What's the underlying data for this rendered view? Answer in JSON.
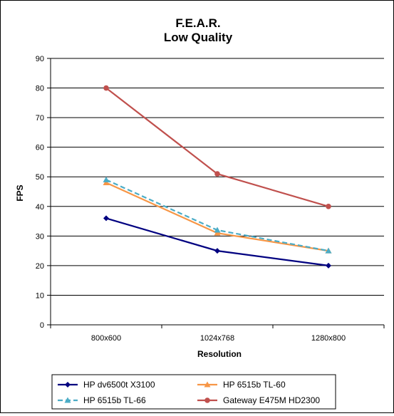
{
  "chart_data": {
    "type": "line",
    "title": "F.E.A.R.",
    "subtitle": "Low Quality",
    "xlabel": "Resolution",
    "ylabel": "FPS",
    "categories": [
      "800x600",
      "1024x768",
      "1280x800"
    ],
    "ylim": [
      0,
      90
    ],
    "yticks": [
      0,
      10,
      20,
      30,
      40,
      50,
      60,
      70,
      80,
      90
    ],
    "grid": true,
    "legend_position": "bottom",
    "series": [
      {
        "name": "HP dv6500t X3100",
        "values": [
          36,
          25,
          20
        ],
        "color": "#000080",
        "marker": "diamond",
        "dashed": false
      },
      {
        "name": "HP 6515b TL-60",
        "values": [
          48,
          31,
          25
        ],
        "color": "#F79646",
        "marker": "triangle",
        "dashed": false
      },
      {
        "name": "HP 6515b TL-66",
        "values": [
          49,
          32,
          25
        ],
        "color": "#4BACC6",
        "marker": "triangle",
        "dashed": true
      },
      {
        "name": "Gateway E475M HD2300",
        "values": [
          80,
          51,
          40
        ],
        "color": "#C0504D",
        "marker": "circle",
        "dashed": false
      }
    ]
  }
}
